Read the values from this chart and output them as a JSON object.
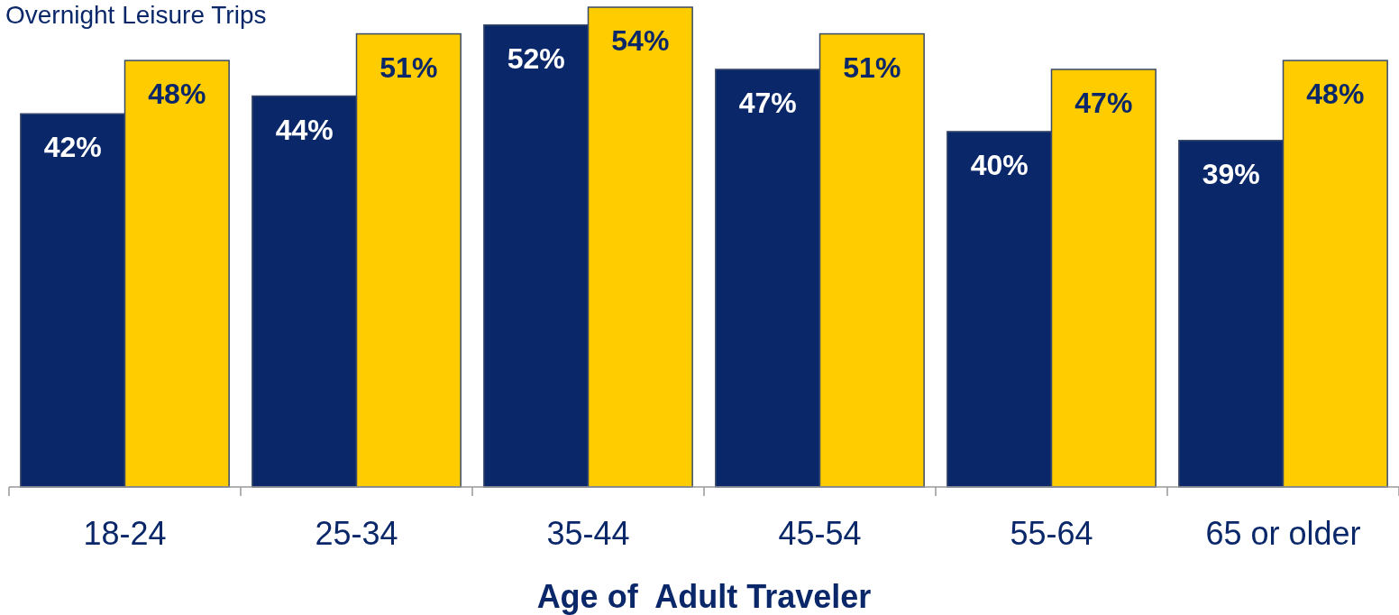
{
  "chart_data": {
    "type": "bar",
    "title": "Overnight Leisure Trips",
    "xlabel": "Age of  Adult Traveler",
    "categories": [
      "18-24",
      "25-34",
      "35-44",
      "45-54",
      "55-64",
      "65 or older"
    ],
    "series": [
      {
        "color": "#0a2769",
        "values": [
          42,
          44,
          52,
          47,
          40,
          39
        ],
        "value_labels": [
          "42%",
          "44%",
          "52%",
          "47%",
          "40%",
          "39%"
        ]
      },
      {
        "color": "#ffcc00",
        "values": [
          48,
          51,
          54,
          51,
          47,
          48
        ],
        "value_labels": [
          "48%",
          "51%",
          "54%",
          "51%",
          "47%",
          "48%"
        ]
      }
    ]
  }
}
